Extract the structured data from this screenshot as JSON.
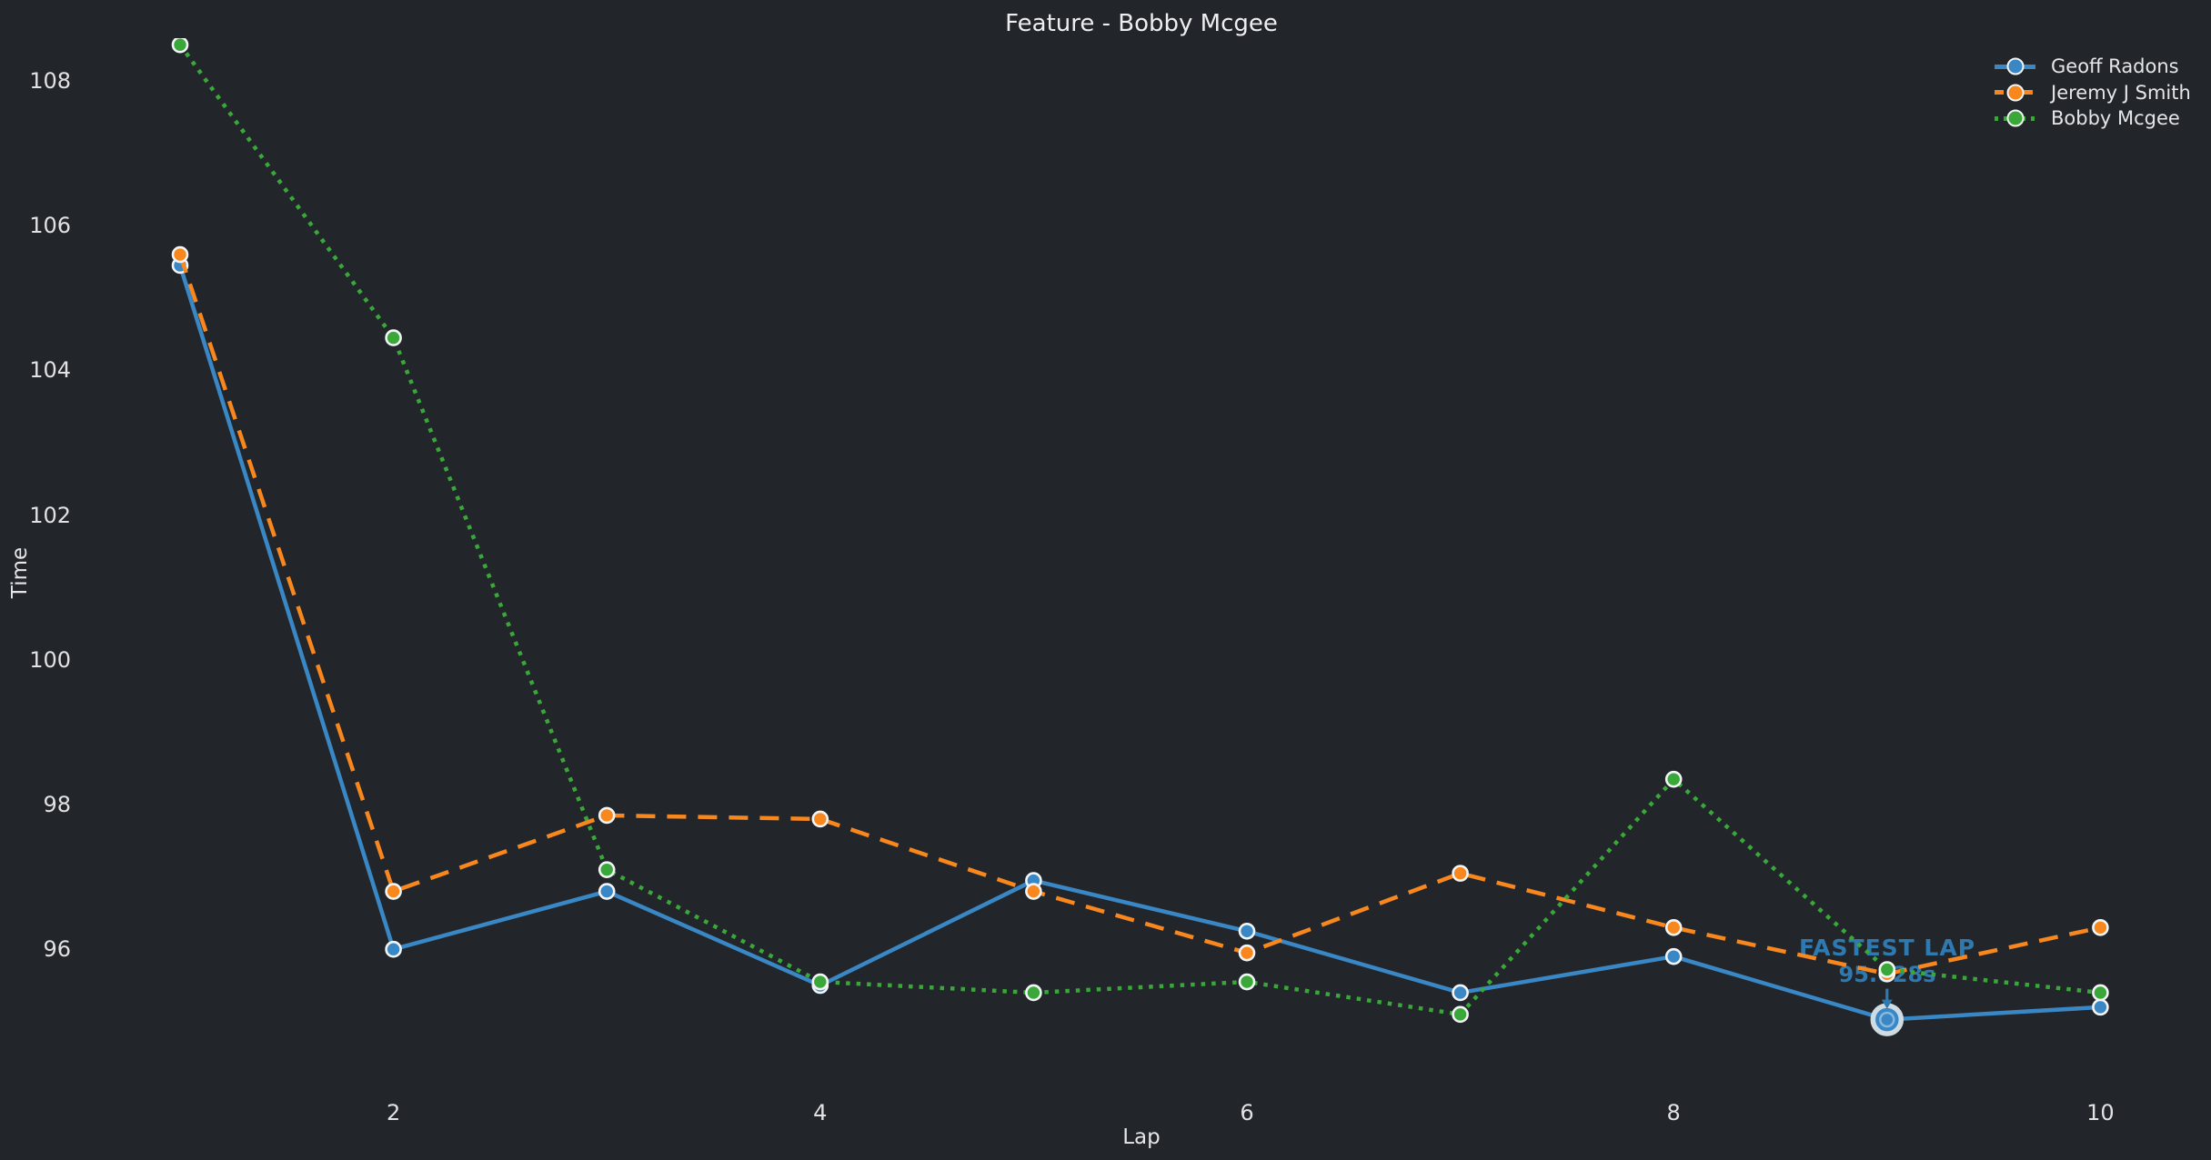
{
  "figure": {
    "background": "#22262b",
    "text_color": "#e8eaec"
  },
  "chart_data": {
    "type": "line",
    "title": "Feature - Bobby Mcgee",
    "xlabel": "Lap",
    "ylabel": "Time",
    "x": [
      1,
      2,
      3,
      4,
      5,
      6,
      7,
      8,
      9,
      10
    ],
    "xticks": [
      2,
      4,
      6,
      8,
      10
    ],
    "yticks": [
      96,
      98,
      100,
      102,
      104,
      106,
      108
    ],
    "xlim": [
      0.57,
      10.36
    ],
    "ylim": [
      94.0,
      108.6
    ],
    "grid": false,
    "legend_position": "upper-right",
    "marker_edge_color": "#f2f4f6",
    "series": [
      {
        "name": "Geoff Radons",
        "color": "#3a87c5",
        "line_style": "solid",
        "values": [
          105.45,
          96.0,
          96.8,
          95.5,
          96.95,
          96.25,
          95.4,
          95.9,
          95.028,
          95.2
        ]
      },
      {
        "name": "Jeremy J Smith",
        "color": "#f8871e",
        "line_style": "dashed",
        "values": [
          105.6,
          96.8,
          97.85,
          97.8,
          96.8,
          95.95,
          97.05,
          96.3,
          95.66,
          96.3
        ]
      },
      {
        "name": "Bobby Mcgee",
        "color": "#39a839",
        "line_style": "dotted",
        "values": [
          108.5,
          104.45,
          97.1,
          95.55,
          95.4,
          95.55,
          95.1,
          98.35,
          95.72,
          95.4
        ]
      }
    ],
    "annotation": {
      "label": "FASTEST LAP",
      "value_text": "95.028s",
      "value_seconds": 95.028,
      "lap": 9,
      "series": "Geoff Radons",
      "color": "#2e79b0",
      "highlight_ring_color": "#cfdbe3",
      "highlight_inner_ring_color": "#8ab9dd"
    }
  }
}
